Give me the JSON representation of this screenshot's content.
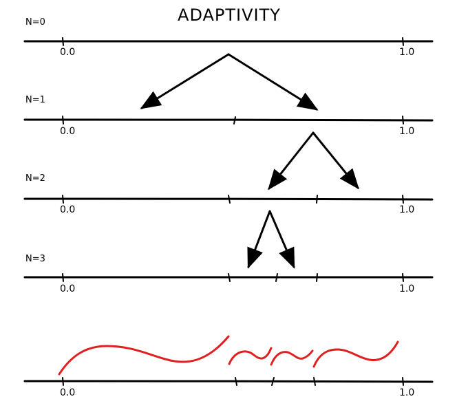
{
  "title": "ADAPTIVITY",
  "axis_labels": {
    "start": "0.0",
    "end": "1.0"
  },
  "rows": [
    {
      "label": "N=0"
    },
    {
      "label": "N=1"
    },
    {
      "label": "N=2"
    },
    {
      "label": "N=3"
    }
  ],
  "colors": {
    "ink": "#000000",
    "curve": "#e02020"
  }
}
